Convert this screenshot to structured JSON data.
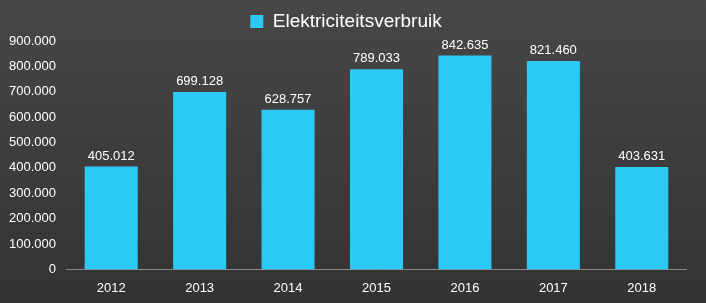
{
  "chart_data": {
    "type": "bar",
    "categories": [
      "2012",
      "2013",
      "2014",
      "2015",
      "2016",
      "2017",
      "2018"
    ],
    "series": [
      {
        "name": "Elektriciteitsverbruik",
        "color": "#2cc9f5",
        "values": [
          405012,
          699128,
          628757,
          789033,
          842635,
          821460,
          403631
        ],
        "value_labels": [
          "405.012",
          "699.128",
          "628.757",
          "789.033",
          "842.635",
          "821.460",
          "403.631"
        ]
      }
    ],
    "ylim": [
      0,
      900000
    ],
    "yticks": [
      0,
      {
        "value": 100000,
        "label": "100.000"
      },
      {
        "value": 200000,
        "label": "200.000"
      },
      {
        "value": 300000,
        "label": "300.000"
      },
      {
        "value": 400000,
        "label": "400.000"
      },
      {
        "value": 500000,
        "label": "500.000"
      },
      {
        "value": 600000,
        "label": "600.000"
      },
      {
        "value": 700000,
        "label": "700.000"
      },
      {
        "value": 800000,
        "label": "800.000"
      },
      {
        "value": 900000,
        "label": "900.000"
      }
    ],
    "grid": false,
    "legend": "top",
    "data_labels": true
  }
}
